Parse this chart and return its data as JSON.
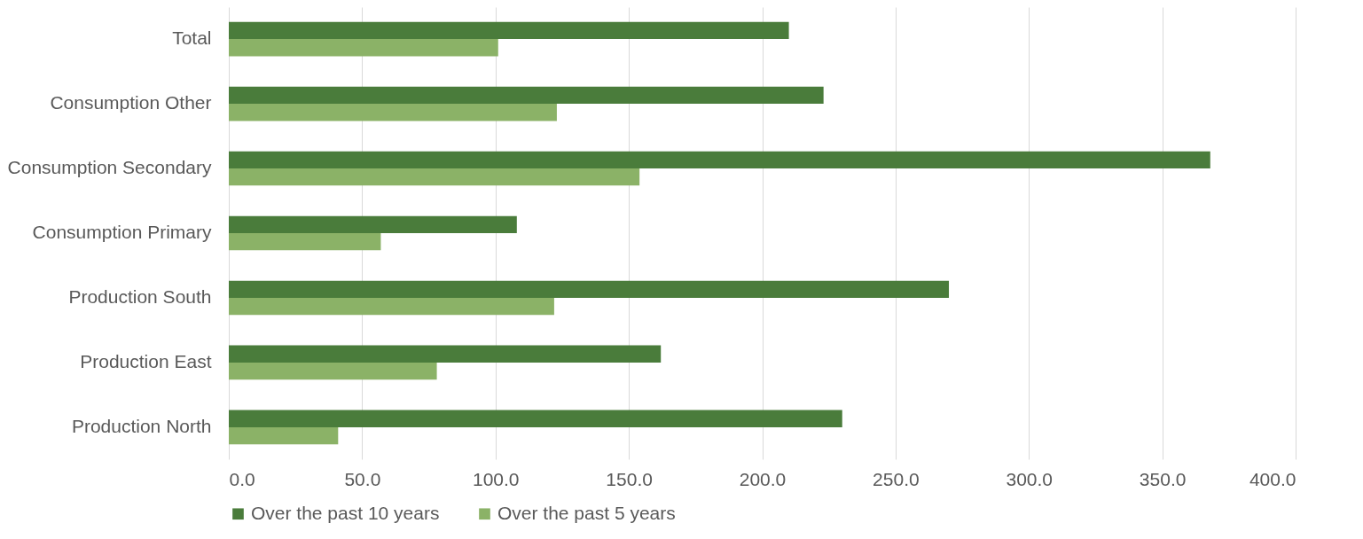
{
  "chart_data": {
    "type": "bar",
    "orientation": "horizontal",
    "categories": [
      "Total",
      "Consumption Other",
      "Consumption Secondary",
      "Consumption Primary",
      "Production South",
      "Production East",
      "Production North"
    ],
    "series": [
      {
        "name": "Over the past 10 years",
        "color": "#4a7c3b",
        "values": [
          210,
          223,
          368,
          108,
          270,
          162,
          230
        ]
      },
      {
        "name": "Over the past 5 years",
        "color": "#8bb267",
        "values": [
          101,
          123,
          154,
          57,
          122,
          78,
          41
        ]
      }
    ],
    "xlim": [
      0,
      400
    ],
    "xticks": [
      {
        "value": 0,
        "label": "0.0"
      },
      {
        "value": 50,
        "label": "50.0"
      },
      {
        "value": 100,
        "label": "100.0"
      },
      {
        "value": 150,
        "label": "150.0"
      },
      {
        "value": 200,
        "label": "200.0"
      },
      {
        "value": 250,
        "label": "250.0"
      },
      {
        "value": 300,
        "label": "300.0"
      },
      {
        "value": 350,
        "label": "350.0"
      },
      {
        "value": 400,
        "label": "400.0"
      }
    ],
    "grid": "x",
    "legend": "bottom"
  }
}
